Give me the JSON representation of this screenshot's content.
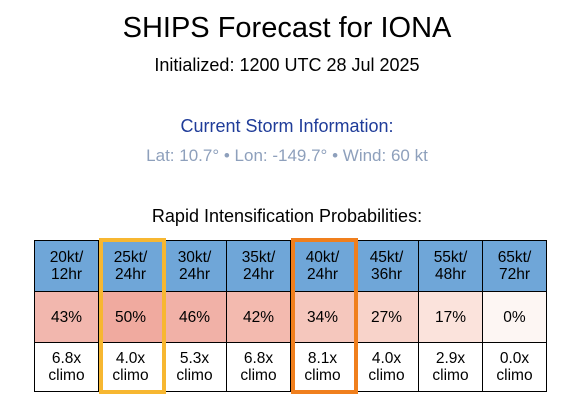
{
  "page": {
    "title": "SHIPS Forecast for IONA",
    "initialized": "Initialized: 1200 UTC 28 Jul 2025"
  },
  "storm": {
    "heading": "Current Storm Information:",
    "lat": "Lat: 10.7°",
    "lon": "Lon: -149.7°",
    "wind": "Wind: 60 kt",
    "separator": "•"
  },
  "ri": {
    "heading": "Rapid Intensification Probabilities:",
    "header_color": "#6fa6d8",
    "highlight_colors": [
      "#f7b731",
      "#f07f1d"
    ],
    "columns": [
      {
        "threshold": "20kt/",
        "window": "12hr",
        "probability": "43%",
        "prob_color": "#f2b7ae",
        "multiplier": "6.8x",
        "climo": "climo"
      },
      {
        "threshold": "25kt/",
        "window": "24hr",
        "probability": "50%",
        "prob_color": "#f0aa9f",
        "multiplier": "4.0x",
        "climo": "climo"
      },
      {
        "threshold": "30kt/",
        "window": "24hr",
        "probability": "46%",
        "prob_color": "#f1b1a7",
        "multiplier": "5.3x",
        "climo": "climo"
      },
      {
        "threshold": "35kt/",
        "window": "24hr",
        "probability": "42%",
        "prob_color": "#f3baaf",
        "multiplier": "6.8x",
        "climo": "climo"
      },
      {
        "threshold": "40kt/",
        "window": "24hr",
        "probability": "34%",
        "prob_color": "#f5c7bd",
        "multiplier": "8.1x",
        "climo": "climo"
      },
      {
        "threshold": "45kt/",
        "window": "36hr",
        "probability": "27%",
        "prob_color": "#f8d3ca",
        "multiplier": "4.0x",
        "climo": "climo"
      },
      {
        "threshold": "55kt/",
        "window": "48hr",
        "probability": "17%",
        "prob_color": "#fbe3dc",
        "multiplier": "2.9x",
        "climo": "climo"
      },
      {
        "threshold": "65kt/",
        "window": "72hr",
        "probability": "0%",
        "prob_color": "#fdf6f3",
        "multiplier": "0.0x",
        "climo": "climo"
      }
    ]
  }
}
